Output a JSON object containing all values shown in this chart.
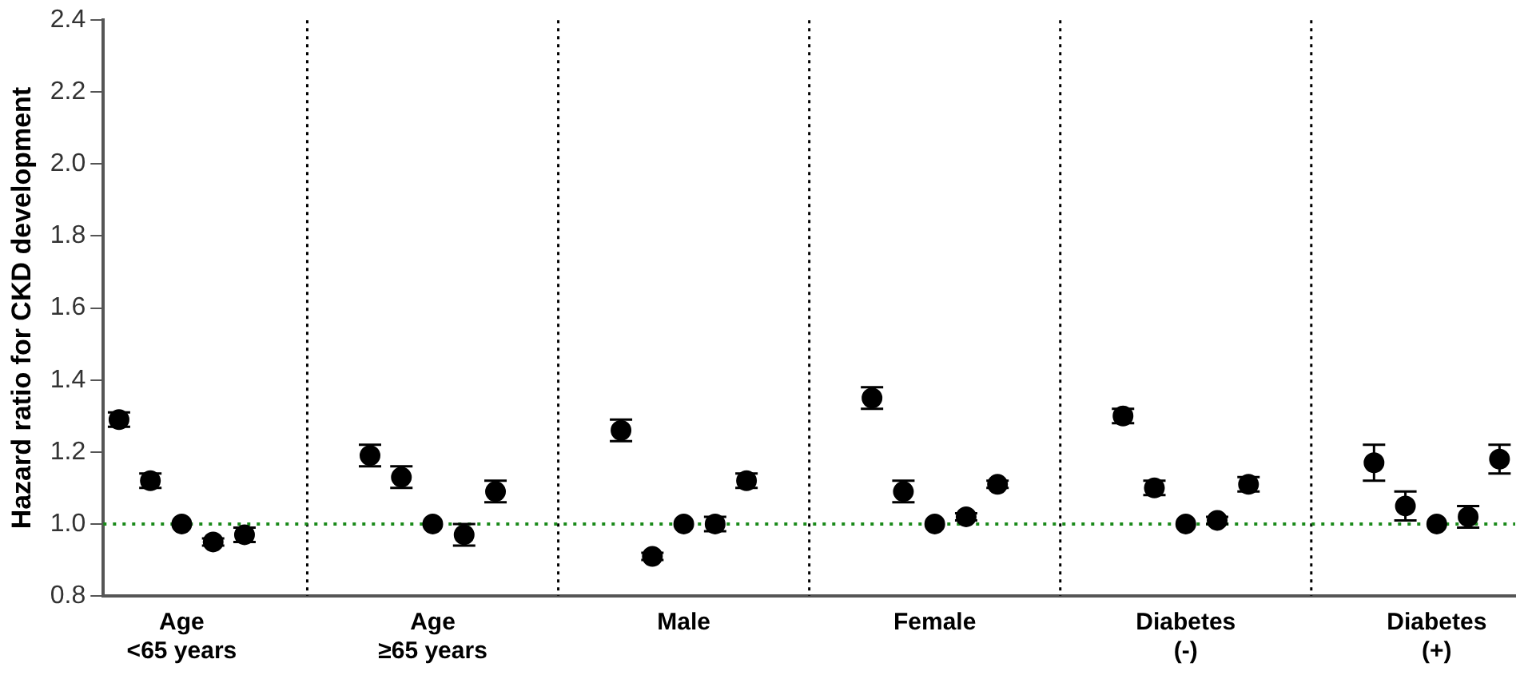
{
  "chart_data": {
    "type": "scatter",
    "ylabel": "Hazard ratio for CKD development",
    "categories": [
      null,
      null,
      "Age\n<65 years",
      null,
      null,
      null,
      null,
      null,
      null,
      null,
      "Age\n≥65 years",
      null,
      null,
      null,
      null,
      null,
      null,
      null,
      "Male",
      null,
      null,
      null,
      null,
      null,
      null,
      null,
      "Female",
      null,
      null,
      null,
      null,
      null,
      null,
      null,
      "Diabetes\n(-)",
      null,
      null,
      null,
      null,
      null,
      null,
      null,
      "Diabetes\n(+)",
      null,
      null
    ],
    "series": [
      {
        "color": "#000000",
        "values": [
          1.29,
          1.12,
          1.0,
          0.95,
          0.97,
          null,
          null,
          null,
          1.19,
          1.13,
          1.0,
          0.97,
          1.09,
          null,
          null,
          null,
          1.26,
          0.91,
          1.0,
          1.0,
          1.12,
          null,
          null,
          null,
          1.35,
          1.09,
          1.0,
          1.02,
          1.11,
          null,
          null,
          null,
          1.3,
          1.1,
          1.0,
          1.01,
          1.11,
          null,
          null,
          null,
          1.17,
          1.05,
          1.0,
          1.02,
          1.18
        ],
        "errors": [
          0.02,
          0.02,
          null,
          0.01,
          0.02,
          null,
          null,
          null,
          0.03,
          0.03,
          null,
          0.03,
          0.03,
          null,
          null,
          null,
          0.03,
          0.01,
          null,
          0.02,
          0.02,
          null,
          null,
          null,
          0.03,
          0.03,
          null,
          0.01,
          0.01,
          null,
          null,
          null,
          0.02,
          0.02,
          null,
          0.01,
          0.02,
          null,
          null,
          null,
          0.05,
          0.04,
          null,
          0.03,
          0.04
        ]
      }
    ],
    "ylim": [
      0.8,
      2.4
    ],
    "yticks": [
      0.8,
      {
        "value": 1,
        "label": "1.0"
      },
      1.2,
      1.4,
      1.6,
      1.8,
      {
        "value": 2,
        "label": "2.0"
      },
      2.2,
      2.4
    ],
    "grid": "x",
    "legend": false,
    "marker": "circle",
    "ref_lines": [
      {
        "axis": "y",
        "value": 1.0,
        "color": "#1a8a1a",
        "line_style": "dotted"
      }
    ]
  }
}
